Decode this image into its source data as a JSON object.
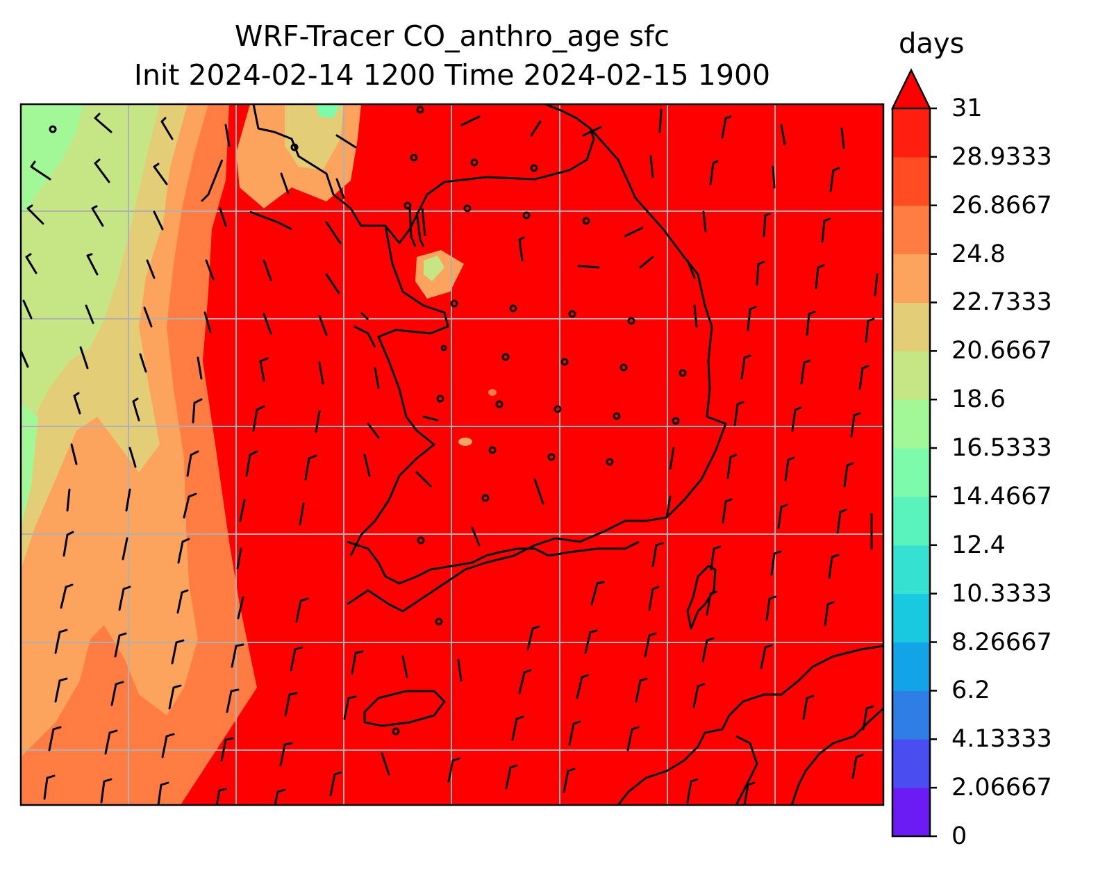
{
  "title": {
    "line1": "WRF-Tracer CO_anthro_age sfc",
    "line2": "Init 2024-02-14 1200 Time 2024-02-15 1900"
  },
  "colorbar": {
    "unit": "days",
    "extend": "max",
    "ticks": [
      "0",
      "2.06667",
      "4.13333",
      "6.2",
      "8.26667",
      "10.3333",
      "12.4",
      "14.4667",
      "16.5333",
      "18.6",
      "20.6667",
      "22.7333",
      "24.8",
      "26.8667",
      "28.9333",
      "31"
    ],
    "colors": [
      "#6b1cf5",
      "#4a4df0",
      "#2f7ee6",
      "#12a4e6",
      "#19c9e0",
      "#35e1d1",
      "#5af3bd",
      "#7dfbaa",
      "#a2f796",
      "#c6e686",
      "#e3cd76",
      "#fca35e",
      "#ff7d42",
      "#ff4c23",
      "#ff1e0f"
    ],
    "over_color": "#ff0000"
  },
  "map": {
    "field_dominant_color": "#ff0000",
    "gridlines": true,
    "gridline_color": "#b0b0b0",
    "coastline_color": "#000000",
    "wind_barbs": true
  }
}
